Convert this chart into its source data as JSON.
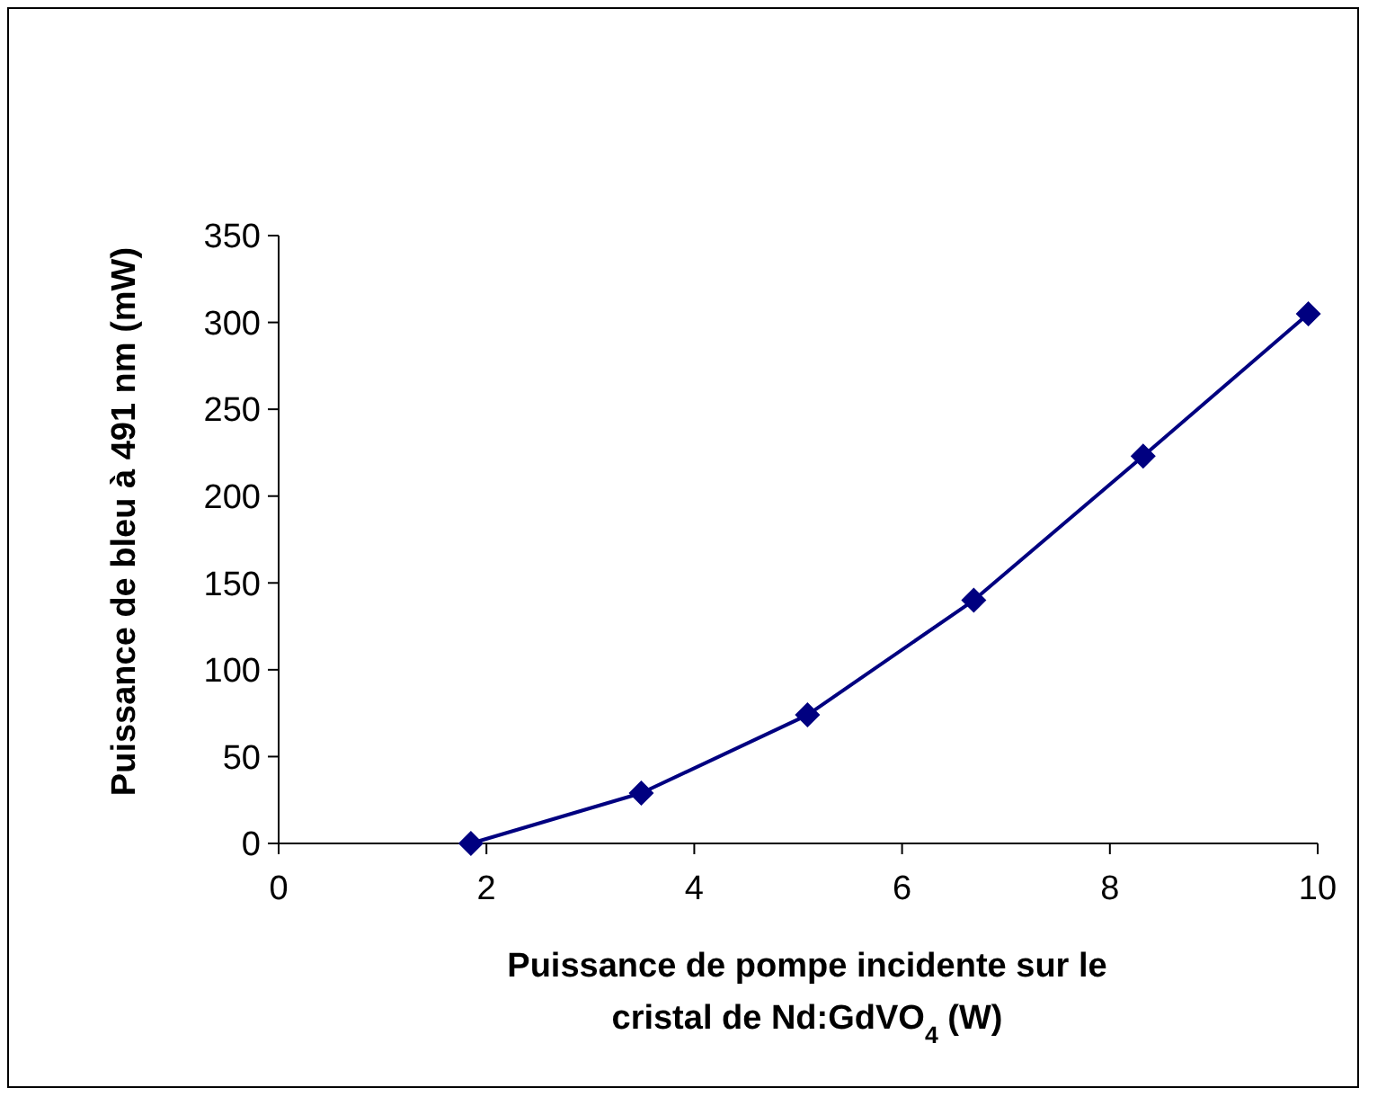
{
  "chart_data": {
    "type": "line",
    "xlabel": "Puissance de pompe incidente sur le cristal de Nd:GdVO$_{4}$ (W)",
    "ylabel": "Puissance de bleu à 491 nm (mW)",
    "series": [
      {
        "color": "#000080",
        "x": [
          1.85,
          3.49,
          5.09,
          6.69,
          8.32,
          9.91
        ],
        "values": [
          0,
          29,
          74,
          140,
          223,
          305
        ]
      }
    ],
    "xlim": [
      0,
      10
    ],
    "xticks": [
      0,
      2,
      4,
      6,
      8,
      10
    ],
    "ylim": [
      0,
      350
    ],
    "yticks": [
      0,
      50,
      100,
      150,
      200,
      250,
      300,
      350
    ],
    "grid": false,
    "marker": "diamond",
    "line_style": "solid"
  }
}
